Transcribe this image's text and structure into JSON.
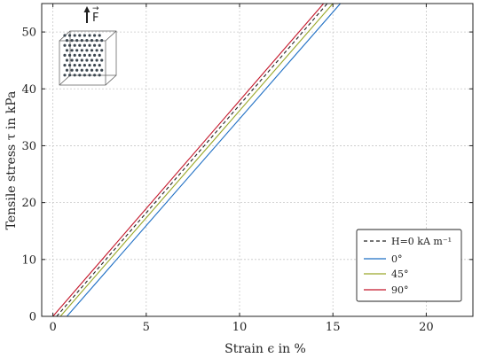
{
  "chart_data": {
    "type": "line",
    "xlabel": "Strain ϵ in %",
    "ylabel": "Tensile stress τ in kPa",
    "xlim": [
      -0.6,
      22.5
    ],
    "ylim": [
      0,
      55
    ],
    "xticks": [
      0,
      5,
      10,
      15,
      20
    ],
    "yticks": [
      0,
      10,
      20,
      30,
      40,
      50
    ],
    "grid": true,
    "legend_position": "bottom-right",
    "inset_label": "F",
    "series": [
      {
        "name": "H=0 kA m⁻¹",
        "color": "#222222",
        "dash": "dashed",
        "x": [
          0.2,
          14.7
        ],
        "y": [
          0,
          55
        ]
      },
      {
        "name": "0°",
        "color": "#1f6fc4",
        "dash": "solid",
        "x": [
          0.75,
          15.4
        ],
        "y": [
          0,
          55
        ]
      },
      {
        "name": "45°",
        "color": "#9aa82a",
        "dash": "solid",
        "x": [
          0.4,
          15.0
        ],
        "y": [
          0,
          55
        ]
      },
      {
        "name": "90°",
        "color": "#c4162a",
        "dash": "solid",
        "x": [
          0.0,
          14.5
        ],
        "y": [
          0,
          55
        ]
      }
    ]
  }
}
